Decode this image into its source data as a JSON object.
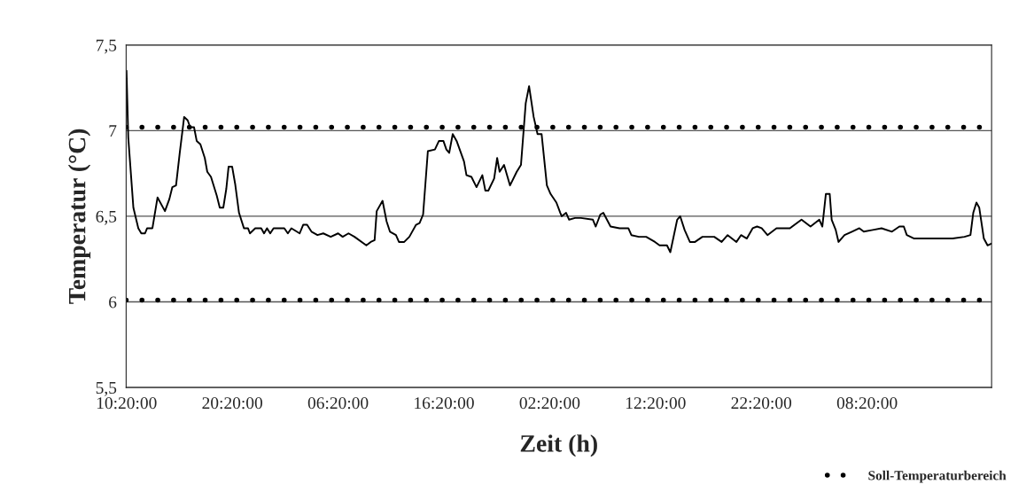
{
  "chart_data": {
    "type": "line",
    "xlabel": "Zeit (h)",
    "ylabel": "Temperatur (°C)",
    "x": [
      "2000-01-01T10:20",
      "2000-01-01T10:30",
      "2000-01-01T10:59",
      "2000-01-01T11:27",
      "2000-01-01T11:44",
      "2000-01-01T12:05",
      "2000-01-01T12:17",
      "2000-01-01T12:47",
      "2000-01-01T13:16",
      "2000-01-01T13:58",
      "2000-01-01T14:23",
      "2000-01-01T14:40",
      "2000-01-01T15:01",
      "2000-01-01T15:22",
      "2000-01-01T15:47",
      "2000-01-01T16:07",
      "2000-01-01T16:21",
      "2000-01-01T16:43",
      "2000-01-01T16:58",
      "2000-01-01T17:19",
      "2000-01-01T17:44",
      "2000-01-01T17:58",
      "2000-01-01T18:19",
      "2000-01-01T18:52",
      "2000-01-01T19:09",
      "2000-01-01T19:29",
      "2000-01-01T19:46",
      "2000-01-01T19:59",
      "2000-01-01T20:19",
      "2000-01-01T20:36",
      "2000-01-01T20:58",
      "2000-01-01T21:26",
      "2000-01-01T21:49",
      "2000-01-01T22:00",
      "2000-01-01T22:30",
      "2000-01-01T23:04",
      "2000-01-01T23:20",
      "2000-01-01T23:37",
      "2000-01-01T23:55",
      "2000-01-02T00:14",
      "2000-01-02T00:45",
      "2000-01-02T01:15",
      "2000-01-02T01:35",
      "2000-01-02T01:55",
      "2000-01-02T02:42",
      "2000-01-02T03:02",
      "2000-01-02T03:24",
      "2000-01-02T03:49",
      "2000-01-02T04:23",
      "2000-01-02T04:56",
      "2000-01-02T05:38",
      "2000-01-02T06:20",
      "2000-01-02T06:46",
      "2000-01-02T07:19",
      "2000-01-02T07:53",
      "2000-01-02T09:00",
      "2000-01-02T09:25",
      "2000-01-02T09:47",
      "2000-01-02T09:59",
      "2000-01-02T10:32",
      "2000-01-02T10:55",
      "2000-01-02T11:14",
      "2000-01-02T11:48",
      "2000-01-02T12:05",
      "2000-01-02T12:35",
      "2000-01-02T13:04",
      "2000-01-02T13:42",
      "2000-01-02T14:02",
      "2000-01-02T14:22",
      "2000-01-02T14:49",
      "2000-01-02T15:29",
      "2000-01-02T15:52",
      "2000-01-02T16:17",
      "2000-01-02T16:34",
      "2000-01-02T16:50",
      "2000-01-02T17:10",
      "2000-01-02T17:32",
      "2000-01-02T18:14",
      "2000-01-02T18:28",
      "2000-01-02T18:56",
      "2000-01-02T19:25",
      "2000-01-02T19:58",
      "2000-01-02T20:15",
      "2000-01-02T20:32",
      "2000-01-02T21:05",
      "2000-01-02T21:22",
      "2000-01-02T21:36",
      "2000-01-02T22:01",
      "2000-01-02T22:35",
      "2000-01-02T23:13",
      "2000-01-02T23:37",
      "2000-01-03T00:04",
      "2000-01-03T00:23",
      "2000-01-03T00:49",
      "2000-01-03T01:11",
      "2000-01-03T01:34",
      "2000-01-03T02:04",
      "2000-01-03T02:25",
      "2000-01-03T02:58",
      "2000-01-03T03:20",
      "2000-01-03T03:28",
      "2000-01-03T03:53",
      "2000-01-03T04:10",
      "2000-01-03T04:44",
      "2000-01-03T05:17",
      "2000-01-03T06:25",
      "2000-01-03T06:41",
      "2000-01-03T07:07",
      "2000-01-03T07:24",
      "2000-01-03T08:05",
      "2000-01-03T08:56",
      "2000-01-03T09:46",
      "2000-01-03T10:03",
      "2000-01-03T10:45",
      "2000-01-03T11:27",
      "2000-01-03T12:17",
      "2000-01-03T12:43",
      "2000-01-03T13:25",
      "2000-01-03T13:44",
      "2000-01-03T14:23",
      "2000-01-03T14:40",
      "2000-01-03T15:05",
      "2000-01-03T15:35",
      "2000-01-03T16:04",
      "2000-01-03T16:46",
      "2000-01-03T17:53",
      "2000-01-03T18:35",
      "2000-01-03T19:09",
      "2000-01-03T19:59",
      "2000-01-03T20:25",
      "2000-01-03T20:58",
      "2000-01-03T21:31",
      "2000-01-03T21:56",
      "2000-01-03T22:22",
      "2000-01-03T22:55",
      "2000-01-03T23:46",
      "2000-01-04T00:11",
      "2000-01-04T01:02",
      "2000-01-04T02:08",
      "2000-01-04T02:59",
      "2000-01-04T03:49",
      "2000-01-04T04:06",
      "2000-01-04T04:26",
      "2000-01-04T04:48",
      "2000-01-04T04:59",
      "2000-01-04T05:22",
      "2000-01-04T05:38",
      "2000-01-04T06:12",
      "2000-01-04T06:54",
      "2000-01-04T07:36",
      "2000-01-04T08:01",
      "2000-01-04T08:52",
      "2000-01-04T09:42",
      "2000-01-04T10:41",
      "2000-01-04T11:23",
      "2000-01-04T11:48",
      "2000-01-04T12:05",
      "2000-01-04T12:47",
      "2000-01-04T13:54",
      "2000-01-04T15:01",
      "2000-01-04T16:25",
      "2000-01-04T17:32",
      "2000-01-04T18:06",
      "2000-01-04T18:22",
      "2000-01-04T18:40",
      "2000-01-04T18:56",
      "2000-01-04T19:22",
      "2000-01-04T19:43",
      "2000-01-04T20:04"
    ],
    "series": [
      {
        "color": "#000000",
        "values": [
          7.35,
          6.96,
          6.55,
          6.43,
          6.4,
          6.4,
          6.43,
          6.43,
          6.61,
          6.53,
          6.6,
          6.67,
          6.68,
          6.87,
          7.08,
          7.06,
          7.02,
          7.02,
          6.94,
          6.92,
          6.84,
          6.76,
          6.73,
          6.62,
          6.55,
          6.55,
          6.66,
          6.79,
          6.79,
          6.69,
          6.52,
          6.43,
          6.43,
          6.4,
          6.43,
          6.43,
          6.4,
          6.43,
          6.4,
          6.43,
          6.43,
          6.43,
          6.4,
          6.43,
          6.4,
          6.45,
          6.45,
          6.41,
          6.39,
          6.4,
          6.38,
          6.4,
          6.38,
          6.4,
          6.38,
          6.33,
          6.35,
          6.36,
          6.53,
          6.59,
          6.47,
          6.41,
          6.39,
          6.35,
          6.35,
          6.38,
          6.45,
          6.46,
          6.51,
          6.88,
          6.89,
          6.94,
          6.94,
          6.89,
          6.87,
          6.98,
          6.94,
          6.82,
          6.74,
          6.73,
          6.67,
          6.74,
          6.65,
          6.65,
          6.72,
          6.84,
          6.76,
          6.8,
          6.68,
          6.76,
          6.8,
          7.16,
          7.26,
          7.08,
          6.98,
          6.98,
          6.68,
          6.63,
          6.58,
          6.52,
          6.5,
          6.52,
          6.48,
          6.49,
          6.49,
          6.48,
          6.44,
          6.51,
          6.52,
          6.44,
          6.43,
          6.43,
          6.39,
          6.38,
          6.38,
          6.35,
          6.33,
          6.33,
          6.29,
          6.48,
          6.5,
          6.42,
          6.35,
          6.35,
          6.38,
          6.38,
          6.35,
          6.39,
          6.35,
          6.39,
          6.37,
          6.43,
          6.44,
          6.43,
          6.39,
          6.43,
          6.43,
          6.43,
          6.48,
          6.44,
          6.48,
          6.44,
          6.63,
          6.63,
          6.48,
          6.42,
          6.35,
          6.39,
          6.41,
          6.43,
          6.41,
          6.42,
          6.43,
          6.41,
          6.44,
          6.44,
          6.39,
          6.37,
          6.37,
          6.37,
          6.37,
          6.38,
          6.39,
          6.52,
          6.58,
          6.55,
          6.37,
          6.33,
          6.34
        ]
      }
    ],
    "xlim": [
      "2000-01-01T10:18",
      "2000-01-04T20:06"
    ],
    "xticks": [
      {
        "value": "2000-01-01T10:20",
        "label": "10:20:00"
      },
      {
        "value": "2000-01-01T20:20",
        "label": "20:20:00"
      },
      {
        "value": "2000-01-02T06:20",
        "label": "06:20:00"
      },
      {
        "value": "2000-01-02T16:20",
        "label": "16:20:00"
      },
      {
        "value": "2000-01-03T02:20",
        "label": "02:20:00"
      },
      {
        "value": "2000-01-03T12:20",
        "label": "12:20:00"
      },
      {
        "value": "2000-01-03T22:20",
        "label": "22:20:00"
      },
      {
        "value": "2000-01-04T08:20",
        "label": "08:20:00"
      }
    ],
    "ylim": [
      5.5,
      7.5
    ],
    "yticks": [
      {
        "value": 5.5,
        "label": "5,5"
      },
      6,
      {
        "value": 6.5,
        "label": "6,5"
      },
      7,
      {
        "value": 7.5,
        "label": "7,5"
      }
    ],
    "ref_lines": [
      {
        "axis": "y",
        "value": 7.02,
        "label": "Soll-Temperaturbereich",
        "line_style": "dotted",
        "color": "#000000"
      },
      {
        "axis": "y",
        "value": 6.01,
        "line_style": "dotted",
        "color": "#000000"
      }
    ],
    "grid": "y",
    "legend": "bottom right",
    "line_style": "solid",
    "marker": "none"
  }
}
